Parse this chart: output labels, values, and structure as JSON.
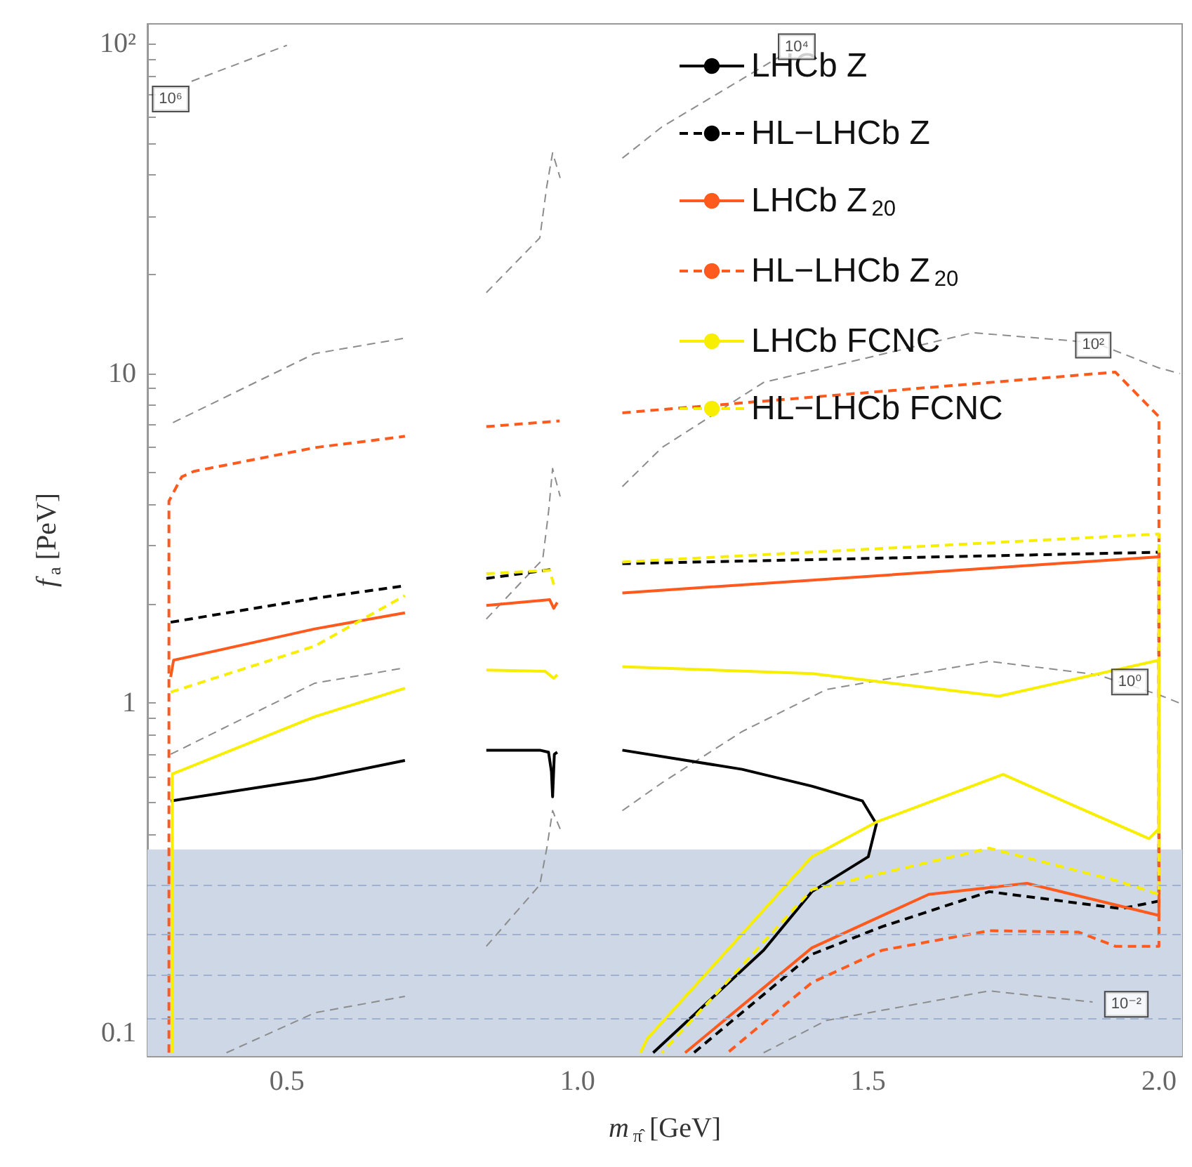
{
  "chart_data": {
    "type": "line",
    "xlabel": "m$_{π̂}$ [GeV]",
    "ylabel": "f$_{a}$ [PeV]",
    "log": "y",
    "xlim": [
      0.26,
      2.04
    ],
    "ylim": [
      0.085,
      115
    ],
    "xticks": [
      {
        "value": 0.3,
        "label": null
      },
      {
        "value": 0.4,
        "label": null
      },
      0.5,
      {
        "value": 0.6,
        "label": null
      },
      {
        "value": 0.7,
        "label": null
      },
      {
        "value": 0.8,
        "label": null
      },
      {
        "value": 0.9,
        "label": null
      },
      {
        "value": 1,
        "label": "1.0"
      },
      {
        "value": 1.1,
        "label": null
      },
      {
        "value": 1.2,
        "label": null
      },
      {
        "value": 1.3,
        "label": null
      },
      {
        "value": 1.4,
        "label": null
      },
      1.5,
      {
        "value": 1.6,
        "label": null
      },
      {
        "value": 1.7,
        "label": null
      },
      {
        "value": 1.8,
        "label": null
      },
      {
        "value": 1.9,
        "label": null
      },
      {
        "value": 2,
        "label": "2.0"
      }
    ],
    "yticks": [
      {
        "value": 0.09,
        "label": null
      },
      0.1,
      {
        "value": 0.2,
        "label": null
      },
      {
        "value": 0.3,
        "label": null
      },
      {
        "value": 0.4,
        "label": null
      },
      {
        "value": 0.5,
        "label": null
      },
      {
        "value": 0.6,
        "label": null
      },
      {
        "value": 0.7,
        "label": null
      },
      {
        "value": 0.8,
        "label": null
      },
      {
        "value": 0.9,
        "label": null
      },
      1,
      {
        "value": 2,
        "label": null
      },
      {
        "value": 3,
        "label": null
      },
      {
        "value": 4,
        "label": null
      },
      {
        "value": 5,
        "label": null
      },
      {
        "value": 6,
        "label": null
      },
      {
        "value": 7,
        "label": null
      },
      {
        "value": 8,
        "label": null
      },
      {
        "value": 9,
        "label": null
      },
      10,
      {
        "value": 20,
        "label": null
      },
      {
        "value": 30,
        "label": null
      },
      {
        "value": 40,
        "label": null
      },
      {
        "value": 50,
        "label": null
      },
      {
        "value": 60,
        "label": null
      },
      {
        "value": 70,
        "label": null
      },
      {
        "value": 80,
        "label": null
      },
      {
        "value": 90,
        "label": null
      },
      {
        "value": 100,
        "label": "10²"
      }
    ],
    "grid": false,
    "legend": "top right",
    "marker": "none",
    "bands": [
      {
        "axis": "y",
        "from": 0.085,
        "to": 0.36,
        "color": "#cdd7e6"
      }
    ],
    "ref_lines": [
      {
        "axis": "y",
        "value": 0.281,
        "color": "#9fb1d0",
        "line_style": "dashed"
      },
      {
        "axis": "y",
        "value": 0.204,
        "color": "#9fb1d0",
        "line_style": "dashed"
      },
      {
        "axis": "y",
        "value": 0.149,
        "color": "#9fb1d0",
        "line_style": "dashed"
      },
      {
        "axis": "y",
        "value": 0.109,
        "color": "#9fb1d0",
        "line_style": "dashed"
      }
    ],
    "annotations": [
      {
        "text": "10⁶",
        "x": 0.3,
        "y": 68
      },
      {
        "text": "10⁴",
        "x": 1.377,
        "y": 98
      },
      {
        "text": "10²",
        "x": 1.887,
        "y": 12.2
      },
      {
        "text": "10⁰",
        "x": 1.95,
        "y": 1.16
      },
      {
        "text": "10⁻²",
        "x": 1.944,
        "y": 0.122
      }
    ],
    "series": [
      {
        "color": "#8c8c8c",
        "line_style": "dashed",
        "x": [
          0.336,
          0.5
        ],
        "values": [
          77,
          99
        ]
      },
      {
        "color": "#8c8c8c",
        "line_style": "dashed",
        "x": [
          0.304,
          0.548,
          0.703,
          0.77,
          0.843,
          0.935,
          0.947,
          0.957,
          0.97,
          1.02,
          1.077,
          1.145,
          1.35
        ],
        "values": [
          7.1,
          11.5,
          12.8,
          null,
          17.6,
          25.8,
          37,
          46.7,
          39.2,
          null,
          45,
          56,
          92
        ]
      },
      {
        "color": "#8c8c8c",
        "line_style": "dashed",
        "x": [
          0.3,
          0.548,
          0.703,
          0.77,
          0.843,
          0.94,
          0.95,
          0.957,
          0.97,
          1.02,
          1.077,
          1.145,
          1.32,
          1.68,
          1.89,
          2.0,
          2.036
        ],
        "values": [
          0.7,
          1.15,
          1.28,
          null,
          1.8,
          2.73,
          3.8,
          5.15,
          4.24,
          null,
          4.54,
          5.96,
          9.4,
          13.3,
          12.4,
          10.4,
          10.0
        ]
      },
      {
        "color": "#8c8c8c",
        "line_style": "dashed",
        "x": [
          0.396,
          0.548,
          0.703,
          0.77,
          0.843,
          0.935,
          0.947,
          0.957,
          0.97,
          1.02,
          1.077,
          1.145,
          1.283,
          1.428,
          1.708,
          1.894,
          2.0,
          2.036
        ],
        "values": [
          0.087,
          0.115,
          0.129,
          null,
          0.183,
          0.281,
          0.363,
          0.472,
          0.415,
          null,
          0.472,
          0.573,
          0.82,
          1.1,
          1.34,
          1.22,
          1.06,
          1.0
        ]
      },
      {
        "color": "#8c8c8c",
        "line_style": "dashed",
        "x": [
          1.32,
          1.428,
          1.708,
          1.886
        ],
        "values": [
          0.087,
          0.109,
          0.134,
          0.124
        ]
      },
      {
        "name": "LHCb Z",
        "color": "#000000",
        "line_style": "solid",
        "x": [
          0.3,
          0.548,
          0.703,
          0.77,
          0.843,
          0.935,
          0.95,
          0.955,
          0.957,
          0.96,
          0.965,
          1.02,
          1.077,
          1.283,
          1.403,
          1.49,
          1.514,
          1.5,
          1.403,
          1.32,
          1.13
        ],
        "values": [
          0.505,
          0.59,
          0.67,
          null,
          0.72,
          0.72,
          0.71,
          0.62,
          0.52,
          0.7,
          0.71,
          null,
          0.72,
          0.63,
          0.56,
          0.505,
          0.43,
          0.342,
          0.268,
          0.178,
          0.087
        ]
      },
      {
        "name": "HL−LHCb Z",
        "color": "#000000",
        "line_style": "dashed",
        "x": [
          0.3,
          0.548,
          0.703,
          0.77,
          0.843,
          0.959,
          1.02,
          1.077,
          2.0,
          2.0,
          1.935,
          1.708,
          1.524,
          1.403,
          1.2
        ],
        "values": [
          1.76,
          2.08,
          2.27,
          null,
          2.39,
          2.55,
          null,
          2.65,
          2.87,
          0.251,
          0.238,
          0.268,
          0.21,
          0.173,
          0.087
        ]
      },
      {
        "name": "LHCb Z$_{20}$",
        "color": "#ff5a1e",
        "line_style": "solid",
        "x": [
          0.3,
          0.305,
          0.548,
          0.703,
          0.77,
          0.843,
          0.952,
          0.959,
          0.965,
          1.02,
          1.077,
          2.0,
          2.0,
          1.773,
          1.604,
          1.403,
          1.185
        ],
        "values": [
          1.2,
          1.35,
          1.68,
          1.88,
          null,
          1.98,
          2.06,
          1.94,
          2.02,
          null,
          2.16,
          2.78,
          0.227,
          0.284,
          0.263,
          0.181,
          0.087
        ]
      },
      {
        "name": "HL−LHCb Z$_{20}$",
        "color": "#ff5a1e",
        "line_style": "dashed",
        "x": [
          0.297,
          0.297,
          0.319,
          0.34,
          0.548,
          0.703,
          0.77,
          0.843,
          0.969,
          1.02,
          1.077,
          1.925,
          2.0,
          2.0,
          1.925,
          1.862,
          1.708,
          1.524,
          1.403,
          1.258
        ],
        "values": [
          0.087,
          4.1,
          4.86,
          5.05,
          5.96,
          6.45,
          null,
          6.9,
          7.18,
          null,
          7.6,
          10.1,
          7.4,
          0.183,
          0.183,
          0.202,
          0.204,
          0.178,
          0.142,
          0.087
        ]
      },
      {
        "name": "LHCb FCNC",
        "color": "#f7ee00",
        "line_style": "solid",
        "x": [
          0.303,
          0.303,
          0.548,
          0.703,
          0.77,
          0.843,
          0.944,
          0.959,
          0.965,
          1.02,
          1.077,
          1.403,
          1.725,
          2.0,
          2.0,
          1.983,
          1.732,
          1.514,
          1.403,
          1.12,
          1.108
        ],
        "values": [
          0.087,
          0.61,
          0.91,
          1.11,
          null,
          1.26,
          1.25,
          1.19,
          1.22,
          null,
          1.29,
          1.23,
          1.05,
          1.35,
          0.416,
          0.388,
          0.608,
          0.436,
          0.342,
          0.096,
          0.087
        ]
      },
      {
        "name": "HL−LHCb FCNC",
        "color": "#f7ee00",
        "line_style": "dashed",
        "x": [
          0.3,
          0.548,
          0.703,
          0.77,
          0.843,
          0.952,
          0.959,
          1.02,
          1.077,
          2.0,
          2.0,
          1.925,
          1.708,
          1.403,
          1.145
        ],
        "values": [
          1.08,
          1.49,
          2.12,
          null,
          2.47,
          2.53,
          2.29,
          null,
          2.68,
          3.26,
          0.263,
          0.29,
          0.363,
          0.272,
          0.087
        ]
      }
    ]
  }
}
